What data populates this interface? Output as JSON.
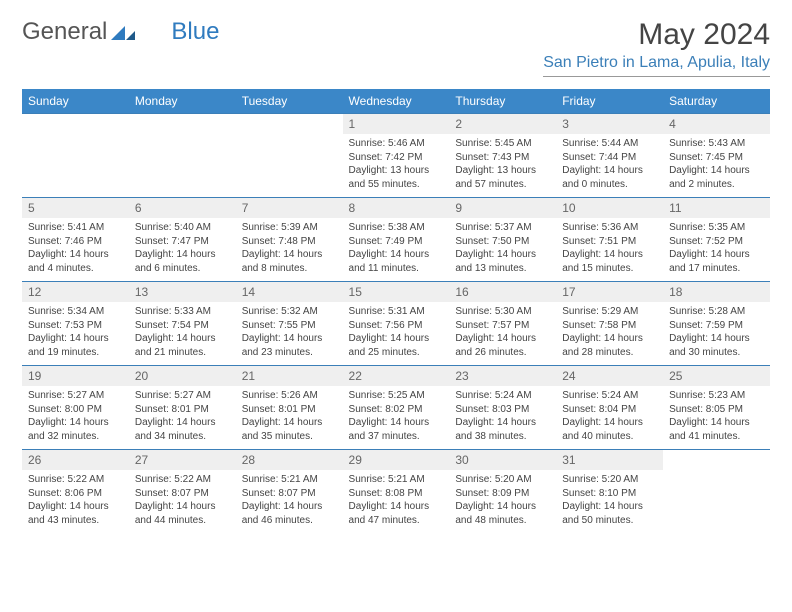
{
  "brand": {
    "part1": "General",
    "part2": "Blue"
  },
  "title": "May 2024",
  "location": "San Pietro in Lama, Apulia, Italy",
  "colors": {
    "header_bg": "#3b87c8",
    "accent": "#3b7fb8",
    "daynum_bg": "#efefef"
  },
  "dayHeaders": [
    "Sunday",
    "Monday",
    "Tuesday",
    "Wednesday",
    "Thursday",
    "Friday",
    "Saturday"
  ],
  "weeks": [
    [
      null,
      null,
      null,
      {
        "n": "1",
        "sr": "5:46 AM",
        "ss": "7:42 PM",
        "dl": "13 hours and 55 minutes."
      },
      {
        "n": "2",
        "sr": "5:45 AM",
        "ss": "7:43 PM",
        "dl": "13 hours and 57 minutes."
      },
      {
        "n": "3",
        "sr": "5:44 AM",
        "ss": "7:44 PM",
        "dl": "14 hours and 0 minutes."
      },
      {
        "n": "4",
        "sr": "5:43 AM",
        "ss": "7:45 PM",
        "dl": "14 hours and 2 minutes."
      }
    ],
    [
      {
        "n": "5",
        "sr": "5:41 AM",
        "ss": "7:46 PM",
        "dl": "14 hours and 4 minutes."
      },
      {
        "n": "6",
        "sr": "5:40 AM",
        "ss": "7:47 PM",
        "dl": "14 hours and 6 minutes."
      },
      {
        "n": "7",
        "sr": "5:39 AM",
        "ss": "7:48 PM",
        "dl": "14 hours and 8 minutes."
      },
      {
        "n": "8",
        "sr": "5:38 AM",
        "ss": "7:49 PM",
        "dl": "14 hours and 11 minutes."
      },
      {
        "n": "9",
        "sr": "5:37 AM",
        "ss": "7:50 PM",
        "dl": "14 hours and 13 minutes."
      },
      {
        "n": "10",
        "sr": "5:36 AM",
        "ss": "7:51 PM",
        "dl": "14 hours and 15 minutes."
      },
      {
        "n": "11",
        "sr": "5:35 AM",
        "ss": "7:52 PM",
        "dl": "14 hours and 17 minutes."
      }
    ],
    [
      {
        "n": "12",
        "sr": "5:34 AM",
        "ss": "7:53 PM",
        "dl": "14 hours and 19 minutes."
      },
      {
        "n": "13",
        "sr": "5:33 AM",
        "ss": "7:54 PM",
        "dl": "14 hours and 21 minutes."
      },
      {
        "n": "14",
        "sr": "5:32 AM",
        "ss": "7:55 PM",
        "dl": "14 hours and 23 minutes."
      },
      {
        "n": "15",
        "sr": "5:31 AM",
        "ss": "7:56 PM",
        "dl": "14 hours and 25 minutes."
      },
      {
        "n": "16",
        "sr": "5:30 AM",
        "ss": "7:57 PM",
        "dl": "14 hours and 26 minutes."
      },
      {
        "n": "17",
        "sr": "5:29 AM",
        "ss": "7:58 PM",
        "dl": "14 hours and 28 minutes."
      },
      {
        "n": "18",
        "sr": "5:28 AM",
        "ss": "7:59 PM",
        "dl": "14 hours and 30 minutes."
      }
    ],
    [
      {
        "n": "19",
        "sr": "5:27 AM",
        "ss": "8:00 PM",
        "dl": "14 hours and 32 minutes."
      },
      {
        "n": "20",
        "sr": "5:27 AM",
        "ss": "8:01 PM",
        "dl": "14 hours and 34 minutes."
      },
      {
        "n": "21",
        "sr": "5:26 AM",
        "ss": "8:01 PM",
        "dl": "14 hours and 35 minutes."
      },
      {
        "n": "22",
        "sr": "5:25 AM",
        "ss": "8:02 PM",
        "dl": "14 hours and 37 minutes."
      },
      {
        "n": "23",
        "sr": "5:24 AM",
        "ss": "8:03 PM",
        "dl": "14 hours and 38 minutes."
      },
      {
        "n": "24",
        "sr": "5:24 AM",
        "ss": "8:04 PM",
        "dl": "14 hours and 40 minutes."
      },
      {
        "n": "25",
        "sr": "5:23 AM",
        "ss": "8:05 PM",
        "dl": "14 hours and 41 minutes."
      }
    ],
    [
      {
        "n": "26",
        "sr": "5:22 AM",
        "ss": "8:06 PM",
        "dl": "14 hours and 43 minutes."
      },
      {
        "n": "27",
        "sr": "5:22 AM",
        "ss": "8:07 PM",
        "dl": "14 hours and 44 minutes."
      },
      {
        "n": "28",
        "sr": "5:21 AM",
        "ss": "8:07 PM",
        "dl": "14 hours and 46 minutes."
      },
      {
        "n": "29",
        "sr": "5:21 AM",
        "ss": "8:08 PM",
        "dl": "14 hours and 47 minutes."
      },
      {
        "n": "30",
        "sr": "5:20 AM",
        "ss": "8:09 PM",
        "dl": "14 hours and 48 minutes."
      },
      {
        "n": "31",
        "sr": "5:20 AM",
        "ss": "8:10 PM",
        "dl": "14 hours and 50 minutes."
      },
      null
    ]
  ],
  "labels": {
    "sunrise": "Sunrise: ",
    "sunset": "Sunset: ",
    "daylight": "Daylight: "
  }
}
